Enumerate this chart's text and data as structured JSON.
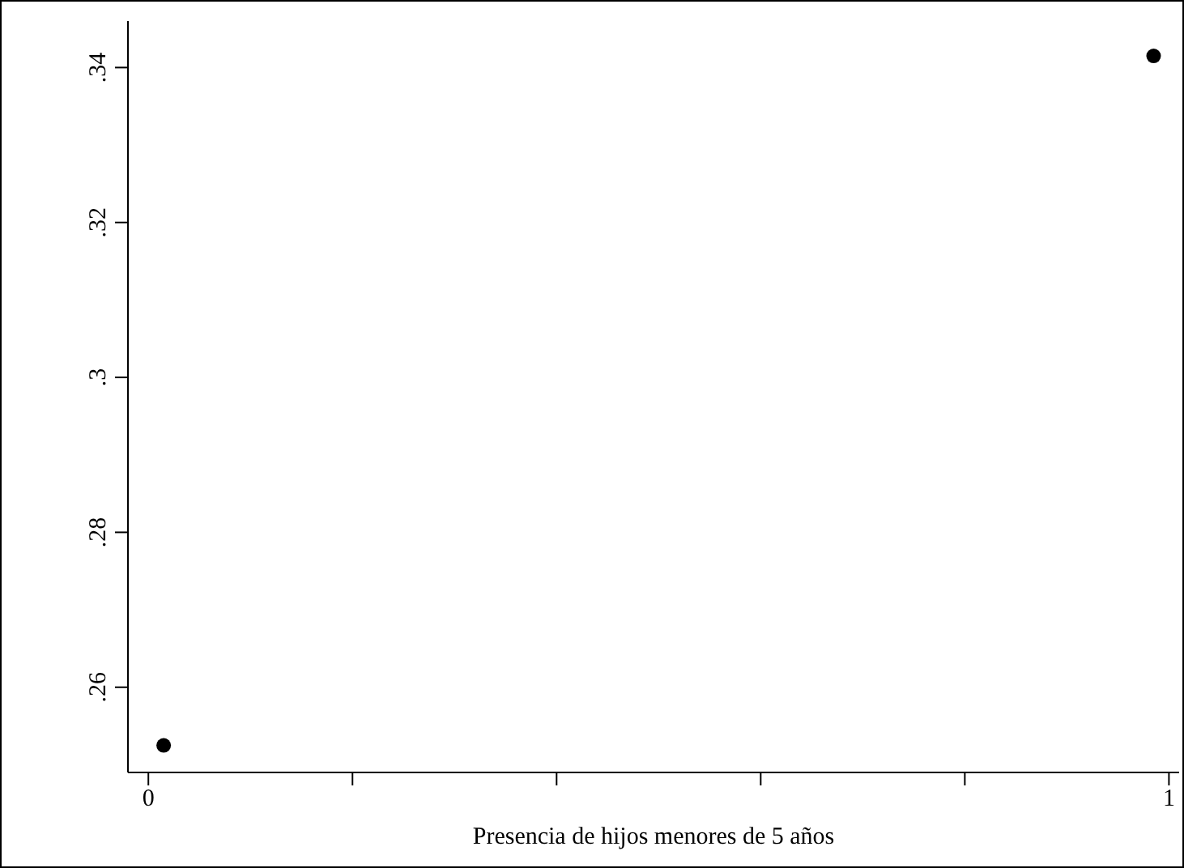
{
  "chart_data": {
    "type": "scatter",
    "xlabel": "Presencia de hijos menores de 5 años",
    "x": [
      0.015,
      0.985
    ],
    "values": [
      0.2525,
      0.3415
    ],
    "color": "#000000",
    "marker": "circle",
    "xlim": [
      -0.02,
      1.01
    ],
    "xticks": [
      0,
      {
        "value": 0.2,
        "label": null
      },
      {
        "value": 0.4,
        "label": null
      },
      {
        "value": 0.6,
        "label": null
      },
      {
        "value": 0.8,
        "label": null
      },
      1
    ],
    "ylim": [
      0.249,
      0.346
    ],
    "yticks": [
      {
        "value": 0.26,
        "label": ".26"
      },
      {
        "value": 0.28,
        "label": ".28"
      },
      {
        "value": 0.3,
        "label": ".3"
      },
      {
        "value": 0.32,
        "label": ".32"
      },
      {
        "value": 0.34,
        "label": ".34"
      }
    ]
  }
}
